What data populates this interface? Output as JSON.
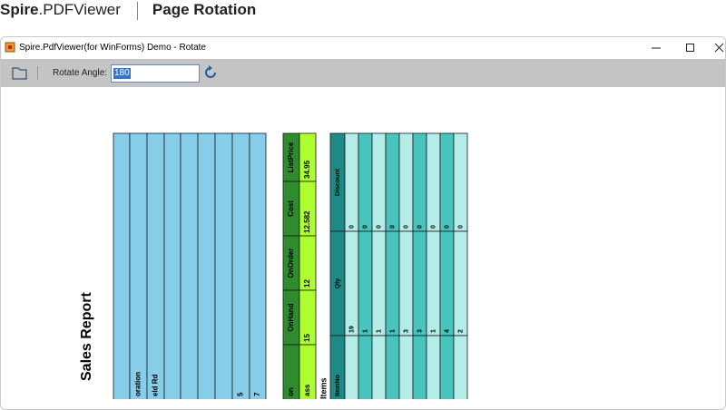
{
  "header": {
    "brand_bold": "Spire",
    "brand_rest": ".PDFViewer",
    "title": "Page Rotation"
  },
  "window": {
    "title": "Spire.PdfViewer(for WinForms) Demo - Rotate"
  },
  "toolbar": {
    "label": "Rotate Angle:",
    "value": "180"
  },
  "document": {
    "title": "Sales Report",
    "customer_cells": [
      "oration",
      "eld Rd"
    ],
    "number_cells": [
      "5",
      "7"
    ],
    "parts_headers": [
      "ListPrice",
      "Cost",
      "OnOrder",
      "OnHand",
      "on"
    ],
    "parts_values": [
      "34.95",
      "12.582",
      "12",
      "15",
      "ass"
    ],
    "items_caption": "Items",
    "items_headers": [
      "Discount",
      "Qty",
      "ItemNo"
    ],
    "discount": [
      "0",
      "0",
      "0",
      "0",
      "0",
      "0",
      "0",
      "0",
      "0"
    ],
    "qty": [
      "19",
      "1",
      "1",
      "1",
      "3",
      "3",
      "1",
      "4",
      "2"
    ]
  }
}
